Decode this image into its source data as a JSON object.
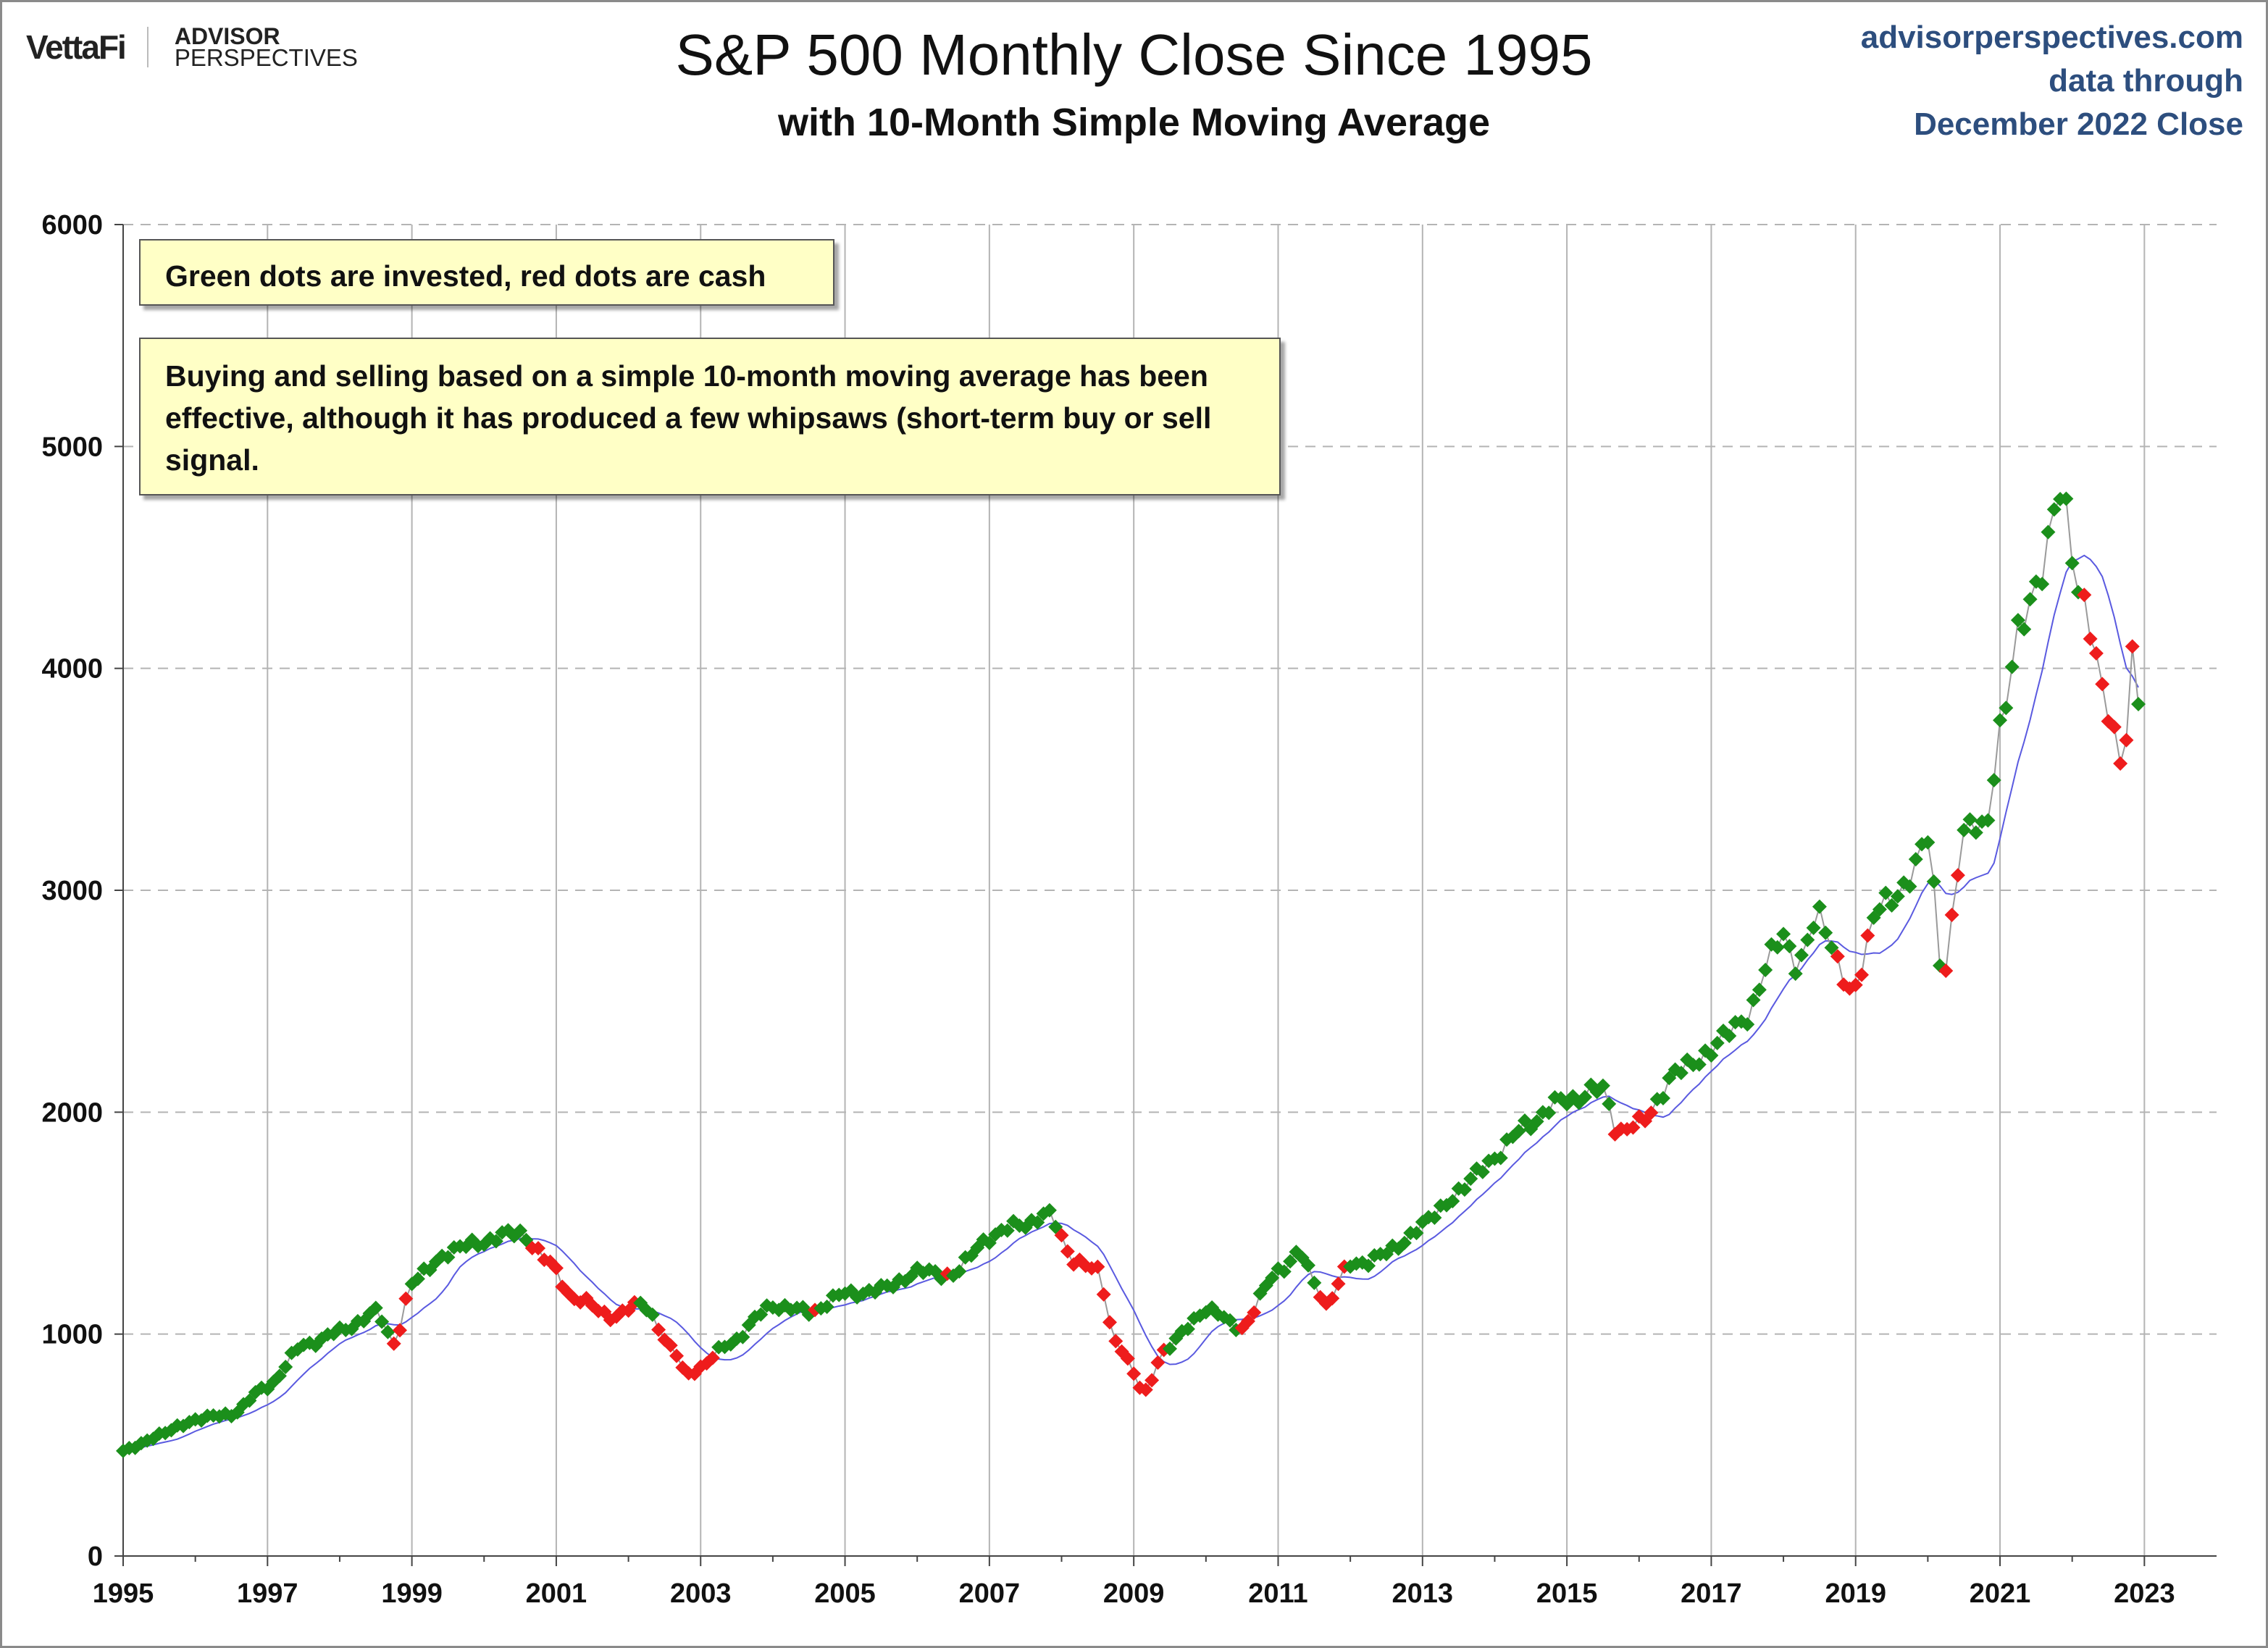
{
  "header": {
    "logo_brand": "VettaFi",
    "logo_line1": "ADVISOR",
    "logo_line2": "PERSPECTIVES",
    "title": "S&P 500 Monthly Close Since 1995",
    "subtitle": "with 10-Month Simple Moving Average",
    "source_line1": "advisorperspectives.com",
    "source_line2": "data through",
    "source_line3": "December 2022 Close"
  },
  "notes": {
    "note1": "Green dots are invested, red dots are cash",
    "note2": "Buying and selling based on a simple 10-month moving average has been effective, although it has produced a few whipsaws (short-term buy or sell signal."
  },
  "colors": {
    "invested": "#1b8f1b",
    "cash": "#ee1c1c",
    "moving_average": "#5a5ae0",
    "price_line": "#9a9a9a",
    "grid": "#b4b4b4",
    "source_text": "#2d4e7e"
  },
  "chart_data": {
    "type": "scatter",
    "title": "S&P 500 Monthly Close Since 1995",
    "subtitle": "with 10-Month Simple Moving Average",
    "xlabel": "",
    "ylabel": "",
    "xlim": [
      1995,
      2024
    ],
    "ylim": [
      0,
      6000
    ],
    "x_ticks": [
      "1995",
      "1997",
      "1999",
      "2001",
      "2003",
      "2005",
      "2007",
      "2009",
      "2011",
      "2013",
      "2015",
      "2017",
      "2019",
      "2021",
      "2023"
    ],
    "y_ticks": [
      "0",
      "1000",
      "2000",
      "3000",
      "4000",
      "5000",
      "6000"
    ],
    "grid": true,
    "series": [
      {
        "name": "Green dots are invested",
        "marker": "diamond"
      },
      {
        "name": "red dots are cash",
        "marker": "diamond"
      }
    ],
    "monthly_close": [
      [
        1995,
        470
      ],
      [
        1995.5,
        545
      ],
      [
        1996,
        615
      ],
      [
        1996.5,
        640
      ],
      [
        1997,
        765
      ],
      [
        1997.5,
        950
      ],
      [
        1998,
        1010
      ],
      [
        1998.5,
        1100
      ],
      [
        1998.75,
        960
      ],
      [
        1999,
        1230
      ],
      [
        1999.5,
        1370
      ],
      [
        2000,
        1420
      ],
      [
        2000.5,
        1460
      ],
      [
        2000.9,
        1320
      ],
      [
        2001.25,
        1160
      ],
      [
        2001.8,
        1080
      ],
      [
        2002.2,
        1140
      ],
      [
        2002.65,
        910
      ],
      [
        2002.8,
        820
      ],
      [
        2003,
        850
      ],
      [
        2003.4,
        960
      ],
      [
        2004,
        1130
      ],
      [
        2004.5,
        1100
      ],
      [
        2005,
        1180
      ],
      [
        2005.5,
        1200
      ],
      [
        2006,
        1280
      ],
      [
        2006.5,
        1270
      ],
      [
        2007,
        1440
      ],
      [
        2007.5,
        1500
      ],
      [
        2007.8,
        1540
      ],
      [
        2008.2,
        1330
      ],
      [
        2008.5,
        1280
      ],
      [
        2008.75,
        970
      ],
      [
        2009.15,
        735
      ],
      [
        2009.4,
        920
      ],
      [
        2010,
        1110
      ],
      [
        2010.5,
        1030
      ],
      [
        2011,
        1290
      ],
      [
        2011.3,
        1360
      ],
      [
        2011.55,
        1210
      ],
      [
        2011.65,
        1130
      ],
      [
        2012,
        1310
      ],
      [
        2012.5,
        1360
      ],
      [
        2013,
        1490
      ],
      [
        2013.5,
        1640
      ],
      [
        2014,
        1800
      ],
      [
        2014.5,
        1960
      ],
      [
        2015,
        2060
      ],
      [
        2015.5,
        2100
      ],
      [
        2015.7,
        1920
      ],
      [
        2016,
        1940
      ],
      [
        2016.5,
        2170
      ],
      [
        2017,
        2280
      ],
      [
        2017.5,
        2440
      ],
      [
        2018,
        2820
      ],
      [
        2018.2,
        2640
      ],
      [
        2018.5,
        2900
      ],
      [
        2018.95,
        2510
      ],
      [
        2019.3,
        2940
      ],
      [
        2019.5,
        2930
      ],
      [
        2020,
        3230
      ],
      [
        2020.2,
        2590
      ],
      [
        2020.5,
        3270
      ],
      [
        2020.8,
        3270
      ],
      [
        2021,
        3750
      ],
      [
        2021.3,
        4180
      ],
      [
        2021.5,
        4400
      ],
      [
        2021.85,
        4770
      ],
      [
        2022.1,
        4380
      ],
      [
        2022.5,
        3790
      ],
      [
        2022.7,
        3590
      ],
      [
        2022.85,
        4080
      ],
      [
        2022.92,
        3840
      ]
    ],
    "moving_average": [
      [
        1995,
        460
      ],
      [
        1996,
        580
      ],
      [
        1997,
        690
      ],
      [
        1998,
        880
      ],
      [
        1999,
        1100
      ],
      [
        2000,
        1350
      ],
      [
        2000.7,
        1450
      ],
      [
        2001.5,
        1250
      ],
      [
        2002.5,
        1100
      ],
      [
        2003.1,
        880
      ],
      [
        2004,
        1080
      ],
      [
        2005,
        1150
      ],
      [
        2006,
        1250
      ],
      [
        2007,
        1380
      ],
      [
        2007.9,
        1480
      ],
      [
        2008.5,
        1380
      ],
      [
        2009.4,
        880
      ],
      [
        2010,
        1000
      ],
      [
        2011,
        1200
      ],
      [
        2011.6,
        1280
      ],
      [
        2012.5,
        1330
      ],
      [
        2013,
        1420
      ],
      [
        2014,
        1750
      ],
      [
        2015,
        2000
      ],
      [
        2015.8,
        2050
      ],
      [
        2016.3,
        2000
      ],
      [
        2017,
        2200
      ],
      [
        2018,
        2600
      ],
      [
        2019,
        2750
      ],
      [
        2019.8,
        3010
      ],
      [
        2020.3,
        3000
      ],
      [
        2020.8,
        3200
      ],
      [
        2021.5,
        4000
      ],
      [
        2022.0,
        4500
      ],
      [
        2022.4,
        4350
      ],
      [
        2022.92,
        3880
      ]
    ]
  }
}
